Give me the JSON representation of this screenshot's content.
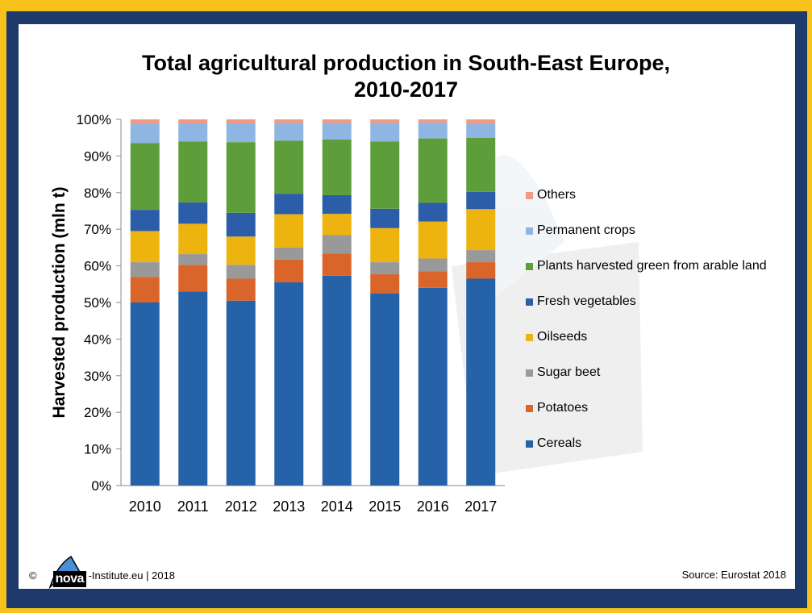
{
  "chart_data": {
    "type": "bar",
    "stacked": true,
    "title_lines": [
      "Total agricultural production in South-East Europe,",
      "2010-2017"
    ],
    "xlabel": "",
    "ylabel": "Harvested production (mln t)",
    "ylim": [
      0,
      100
    ],
    "yticks": [
      "0%",
      "10%",
      "20%",
      "30%",
      "40%",
      "50%",
      "60%",
      "70%",
      "80%",
      "90%",
      "100%"
    ],
    "grid": false,
    "legend_position": "right",
    "categories": [
      "2010",
      "2011",
      "2012",
      "2013",
      "2014",
      "2015",
      "2016",
      "2017"
    ],
    "series": [
      {
        "name": "Cereals",
        "color": "#2562a8",
        "values": [
          50,
          53,
          50.5,
          55.5,
          57.3,
          52.5,
          54,
          56.5
        ]
      },
      {
        "name": "Potatoes",
        "color": "#d9652b",
        "values": [
          7,
          7.3,
          6,
          6.2,
          6.1,
          5.2,
          4.5,
          4.5
        ]
      },
      {
        "name": "Sugar beet",
        "color": "#999999",
        "values": [
          4,
          2.9,
          3.8,
          3.3,
          5,
          3.3,
          3.5,
          3.3
        ]
      },
      {
        "name": "Oilseeds",
        "color": "#edb40f",
        "values": [
          8.5,
          8.3,
          7.7,
          9.1,
          5.8,
          9.3,
          10.1,
          11.2
        ]
      },
      {
        "name": "Fresh vegetables",
        "color": "#2c5da8",
        "values": [
          5.8,
          5.8,
          6.5,
          5.6,
          5.1,
          5.3,
          5.1,
          4.7
        ]
      },
      {
        "name": "Plants harvested green from arable land",
        "color": "#5e9e3a",
        "values": [
          18.2,
          16.7,
          19.3,
          14.5,
          15.2,
          18.4,
          17.6,
          14.8
        ]
      },
      {
        "name": "Permanent crops",
        "color": "#8fb6e3",
        "values": [
          5.3,
          4.9,
          5.1,
          4.8,
          4.5,
          5,
          4.3,
          3.8
        ]
      },
      {
        "name": "Others",
        "color": "#ee9a86",
        "values": [
          1.2,
          1.1,
          1.1,
          1,
          1,
          1,
          0.9,
          1.2
        ]
      }
    ]
  },
  "footer": {
    "copyright": "©",
    "logo_text": "nova",
    "site": "-Institute.eu | 2018",
    "source": "Source: Eurostat 2018"
  },
  "colors": {
    "outer_border": "#f7c21a",
    "inner_border": "#1d3a6b",
    "logo_blue": "#4a8fd6"
  }
}
